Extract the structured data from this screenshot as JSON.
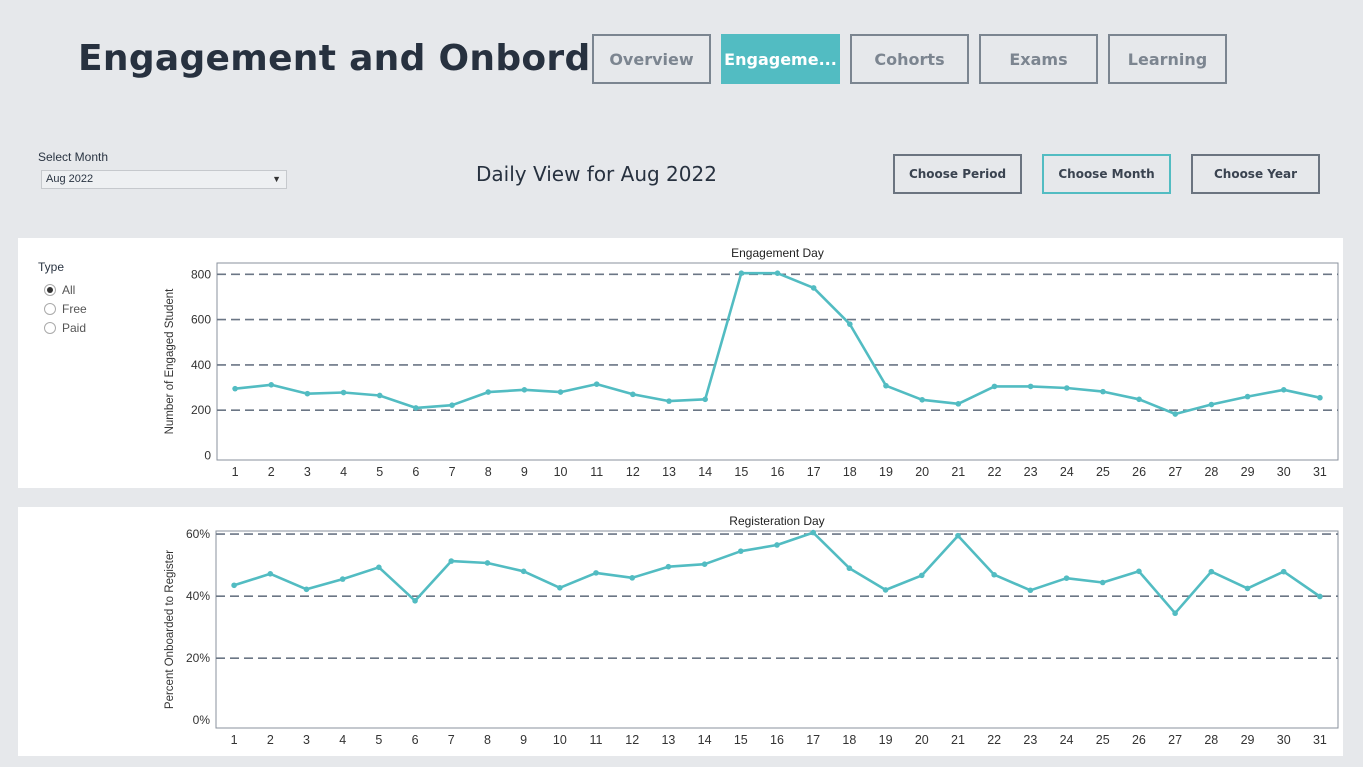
{
  "page": {
    "title": "Engagement and Onbording"
  },
  "nav": {
    "tabs": [
      {
        "label": "Overview"
      },
      {
        "label": "Engageme..."
      },
      {
        "label": "Cohorts"
      },
      {
        "label": "Exams"
      },
      {
        "label": "Learning"
      }
    ],
    "active_index": 1
  },
  "filters": {
    "month_label": "Select Month",
    "month_value": "Aug 2022",
    "type_label": "Type",
    "type_options": [
      "All",
      "Free",
      "Paid"
    ],
    "type_selected": "All"
  },
  "view": {
    "title": "Daily View for Aug 2022"
  },
  "period_buttons": [
    {
      "label": "Choose Period"
    },
    {
      "label": "Choose Month"
    },
    {
      "label": "Choose Year"
    }
  ],
  "colors": {
    "accent": "#52bcc2",
    "line": "#52bcc2",
    "gridline": "#6b7685",
    "text": "#27313f"
  },
  "chart_data": [
    {
      "type": "line",
      "title": "Engagement Day",
      "xlabel": "",
      "ylabel": "Number of Engaged Student",
      "x": [
        1,
        2,
        3,
        4,
        5,
        6,
        7,
        8,
        9,
        10,
        11,
        12,
        13,
        14,
        15,
        16,
        17,
        18,
        19,
        20,
        21,
        22,
        23,
        24,
        25,
        26,
        27,
        28,
        29,
        30,
        31
      ],
      "values": [
        295,
        312,
        273,
        278,
        265,
        210,
        222,
        280,
        290,
        280,
        315,
        270,
        240,
        248,
        805,
        805,
        740,
        580,
        308,
        246,
        228,
        305,
        305,
        298,
        282,
        248,
        183,
        225,
        260,
        290,
        255
      ],
      "yticks": [
        0,
        200,
        400,
        600,
        800
      ],
      "ytick_labels": [
        "0",
        "200",
        "400",
        "600",
        "800"
      ],
      "ylim": [
        -20,
        850
      ],
      "grid": "dashed horizontal"
    },
    {
      "type": "line",
      "title": "Registeration Day",
      "xlabel": "",
      "ylabel": "Percent Onboarded to Register",
      "x": [
        1,
        2,
        3,
        4,
        5,
        6,
        7,
        8,
        9,
        10,
        11,
        12,
        13,
        14,
        15,
        16,
        17,
        18,
        19,
        20,
        21,
        22,
        23,
        24,
        25,
        26,
        27,
        28,
        29,
        30,
        31
      ],
      "values": [
        43.5,
        47.2,
        42.2,
        45.5,
        49.3,
        38.5,
        51.3,
        50.7,
        48.0,
        42.7,
        47.5,
        45.9,
        49.5,
        50.3,
        54.5,
        56.5,
        60.5,
        49.0,
        42.0,
        46.7,
        59.5,
        46.9,
        41.9,
        45.8,
        44.4,
        48.0,
        34.5,
        47.9,
        42.5,
        47.9,
        39.9
      ],
      "yticks": [
        0,
        20,
        40,
        60
      ],
      "ytick_labels": [
        "0%",
        "20%",
        "40%",
        "60%"
      ],
      "ylim": [
        -2.5,
        61
      ],
      "grid": "dashed horizontal"
    }
  ]
}
